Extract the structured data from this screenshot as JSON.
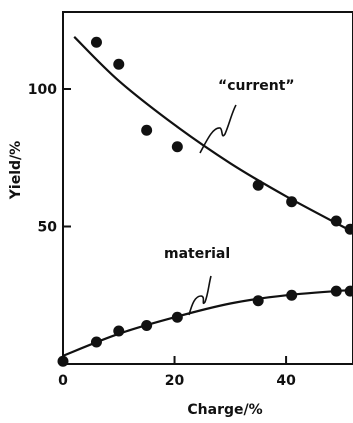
{
  "chart_data": {
    "type": "scatter",
    "xlabel": "Charge/%",
    "ylabel": "Yield/%",
    "xlim": [
      0,
      52
    ],
    "ylim": [
      0,
      128
    ],
    "xticks": [
      0,
      20,
      40
    ],
    "xtick_labels": [
      "0",
      "20",
      "40"
    ],
    "yticks": [
      50,
      100
    ],
    "ytick_labels": [
      "50",
      "100"
    ],
    "grid": false,
    "series": [
      {
        "name": "“current”",
        "points": [
          {
            "x": 6,
            "y": 117
          },
          {
            "x": 10,
            "y": 109
          },
          {
            "x": 15,
            "y": 85
          },
          {
            "x": 20.5,
            "y": 79
          },
          {
            "x": 35,
            "y": 65
          },
          {
            "x": 41,
            "y": 59
          },
          {
            "x": 49,
            "y": 52
          },
          {
            "x": 51.5,
            "y": 49
          }
        ],
        "curve": [
          {
            "x": 2,
            "y": 119
          },
          {
            "x": 10,
            "y": 103
          },
          {
            "x": 20,
            "y": 87
          },
          {
            "x": 30,
            "y": 73
          },
          {
            "x": 40,
            "y": 61
          },
          {
            "x": 52,
            "y": 48
          }
        ]
      },
      {
        "name": "material",
        "points": [
          {
            "x": 0,
            "y": 1
          },
          {
            "x": 6,
            "y": 8
          },
          {
            "x": 10,
            "y": 12
          },
          {
            "x": 15,
            "y": 14
          },
          {
            "x": 20.5,
            "y": 17
          },
          {
            "x": 35,
            "y": 23
          },
          {
            "x": 41,
            "y": 25
          },
          {
            "x": 49,
            "y": 26.5
          },
          {
            "x": 51.5,
            "y": 26.5
          }
        ],
        "curve": [
          {
            "x": 0,
            "y": 3
          },
          {
            "x": 10,
            "y": 11
          },
          {
            "x": 20,
            "y": 17
          },
          {
            "x": 30,
            "y": 22
          },
          {
            "x": 40,
            "y": 25
          },
          {
            "x": 52,
            "y": 27
          }
        ]
      }
    ]
  }
}
